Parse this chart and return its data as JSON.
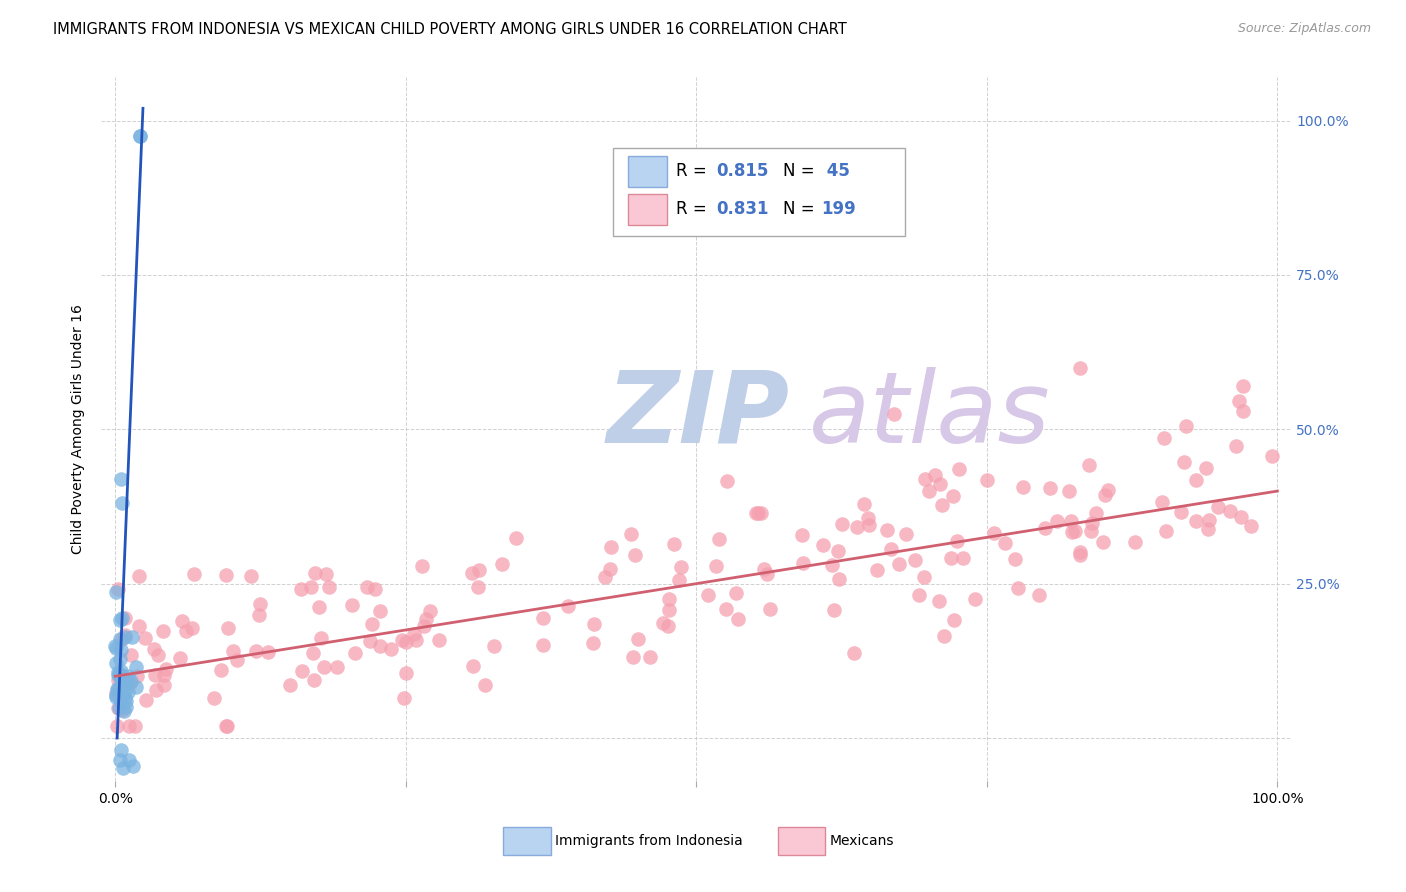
{
  "title": "IMMIGRANTS FROM INDONESIA VS MEXICAN CHILD POVERTY AMONG GIRLS UNDER 16 CORRELATION CHART",
  "source": "Source: ZipAtlas.com",
  "ylabel": "Child Poverty Among Girls Under 16",
  "indonesia_color": "#7ab3e0",
  "mexican_color": "#f5a0b0",
  "indonesia_line_color": "#2255bb",
  "mexican_line_color": "#d06070",
  "indonesia_fill_color": "#b8d4f0",
  "mexican_fill_color": "#fac8d4",
  "watermark_zip": "ZIP",
  "watermark_atlas": "atlas",
  "watermark_color_zip": "#c0cfe8",
  "watermark_color_atlas": "#d8c8e8",
  "grid_color": "#cccccc",
  "background_color": "#ffffff",
  "title_fontsize": 10.5,
  "R_blue": 0.815,
  "N_blue": 45,
  "R_pink": 0.831,
  "N_pink": 199,
  "blue_slope": 46.0,
  "blue_intercept": -0.08,
  "pink_slope": 0.3,
  "pink_intercept": 0.1
}
